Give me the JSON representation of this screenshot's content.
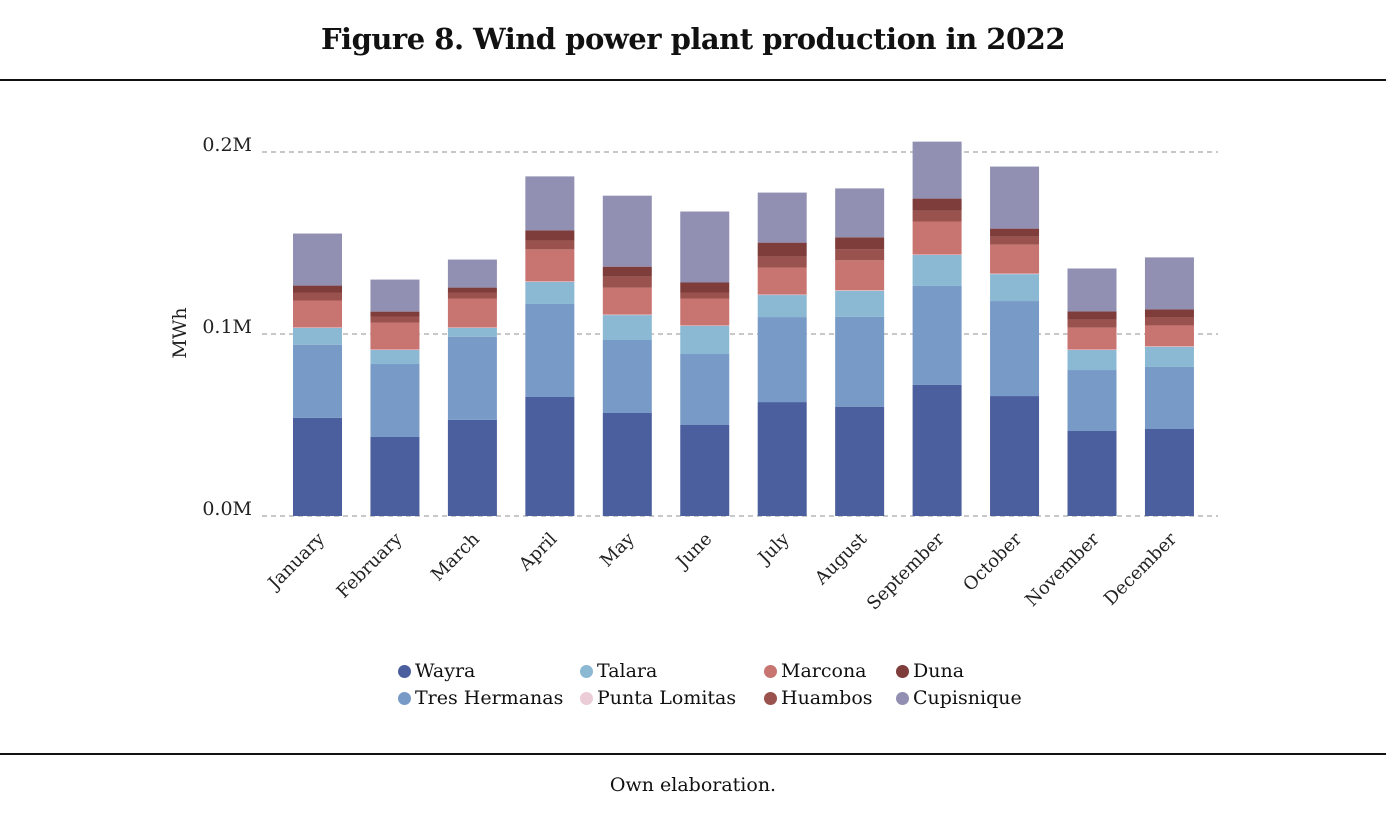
{
  "figure": {
    "title": "Figure 8. Wind power plant production in 2022",
    "source": "Own elaboration."
  },
  "legend": [
    {
      "name": "Wayra",
      "color": "#4b5f9e"
    },
    {
      "name": "Talara",
      "color": "#8bb8d3"
    },
    {
      "name": "Marcona",
      "color": "#c87470"
    },
    {
      "name": "Duna",
      "color": "#7e3d3b"
    },
    {
      "name": "Tres Hermanas",
      "color": "#789ac6"
    },
    {
      "name": "Punta Lomitas",
      "color": "#ecccd6"
    },
    {
      "name": "Huambos",
      "color": "#9a524e"
    },
    {
      "name": "Cupisnique",
      "color": "#9290b2"
    }
  ],
  "chart_data": {
    "type": "bar",
    "stacked": true,
    "title": "Figure 8. Wind power plant production in 2022",
    "xlabel": "",
    "ylabel": "MWh",
    "ylim": [
      0,
      200000
    ],
    "yticks": [
      0,
      100000,
      200000
    ],
    "ytick_labels": [
      "0.0M",
      "0.1M",
      "0.2M"
    ],
    "grid": true,
    "legend_position": "bottom",
    "categories": [
      "January",
      "February",
      "March",
      "April",
      "May",
      "June",
      "July",
      "August",
      "September",
      "October",
      "November",
      "December"
    ],
    "series": [
      {
        "name": "Wayra",
        "color": "#4b5f9e",
        "values": [
          53900,
          43400,
          52800,
          65400,
          56600,
          50000,
          62600,
          59900,
          72000,
          65900,
          46700,
          47800
        ]
      },
      {
        "name": "Tres Hermanas",
        "color": "#789ac6",
        "values": [
          40100,
          40100,
          45600,
          51100,
          40100,
          39000,
          46700,
          49500,
          54400,
          52200,
          33500,
          34100
        ]
      },
      {
        "name": "Talara",
        "color": "#8bb8d3",
        "values": [
          9300,
          7700,
          4900,
          12100,
          13700,
          15400,
          12100,
          14300,
          17000,
          14800,
          11000,
          11000
        ]
      },
      {
        "name": "Punta Lomitas",
        "color": "#ecccd6",
        "values": [
          300,
          300,
          300,
          300,
          300,
          300,
          300,
          300,
          300,
          300,
          300,
          300
        ]
      },
      {
        "name": "Marcona",
        "color": "#c87470",
        "values": [
          14800,
          14800,
          15900,
          17600,
          14800,
          14800,
          14800,
          16500,
          18100,
          15900,
          12100,
          11500
        ]
      },
      {
        "name": "Huambos",
        "color": "#9a524e",
        "values": [
          4400,
          3300,
          3300,
          4900,
          6000,
          3300,
          6000,
          6000,
          6000,
          4400,
          4400,
          4400
        ]
      },
      {
        "name": "Duna",
        "color": "#7e3d3b",
        "values": [
          3800,
          2700,
          2700,
          5500,
          5500,
          5500,
          7700,
          6600,
          6600,
          4400,
          4400,
          4400
        ]
      },
      {
        "name": "Cupisnique",
        "color": "#9290b2",
        "values": [
          28600,
          17600,
          15400,
          29700,
          39000,
          39000,
          27500,
          26900,
          31300,
          34100,
          23600,
          28600
        ]
      }
    ]
  }
}
